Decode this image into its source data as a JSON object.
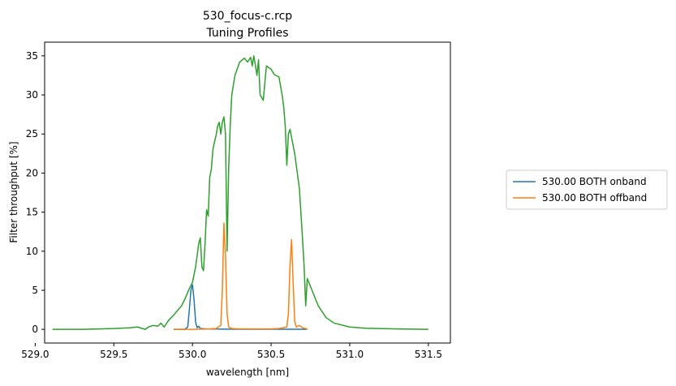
{
  "chart_data": {
    "type": "line",
    "title": "530_focus-c.rcp",
    "subtitle": "Tuning Profiles",
    "xlabel": "wavelength [nm]",
    "ylabel": "Filter throughput [%]",
    "xlim": [
      529.06,
      531.64
    ],
    "ylim": [
      -1.75,
      36.75
    ],
    "xticks": [
      529.0,
      529.5,
      530.0,
      530.5,
      531.0,
      531.5
    ],
    "xtick_labels": [
      "529.0",
      "529.5",
      "530.0",
      "530.5",
      "531.0",
      "531.5"
    ],
    "yticks": [
      0,
      5,
      10,
      15,
      20,
      25,
      30,
      35
    ],
    "ytick_labels": [
      "0",
      "5",
      "10",
      "15",
      "20",
      "25",
      "30",
      "35"
    ],
    "grid": false,
    "legend_position": "right, outside plot",
    "series": [
      {
        "name": "530.00 BOTH onband",
        "color": "#1f77b4",
        "in_legend": true,
        "x": [
          529.88,
          529.95,
          529.97,
          529.98,
          529.99,
          530.0,
          530.01,
          530.02,
          530.03,
          530.04,
          530.05,
          530.1,
          530.2,
          530.3,
          530.4,
          530.5,
          530.6,
          530.7,
          530.73
        ],
        "y": [
          0,
          0,
          0.3,
          2.5,
          5.0,
          5.7,
          3.8,
          0.9,
          0.2,
          0.4,
          0.1,
          0.05,
          0.03,
          0.02,
          0.02,
          0.02,
          0.02,
          0.02,
          0.02
        ]
      },
      {
        "name": "530.00 BOTH offband",
        "color": "#ff7f0e",
        "in_legend": true,
        "x": [
          529.88,
          530.0,
          530.1,
          530.15,
          530.18,
          530.19,
          530.2,
          530.21,
          530.22,
          530.23,
          530.25,
          530.3,
          530.4,
          530.5,
          530.55,
          530.6,
          530.61,
          530.62,
          530.63,
          530.64,
          530.65,
          530.66,
          530.68,
          530.7,
          530.73
        ],
        "y": [
          0,
          0,
          0.05,
          0.1,
          0.5,
          5.0,
          13.6,
          9.5,
          2.0,
          0.3,
          0.1,
          0.05,
          0.05,
          0.05,
          0.1,
          0.3,
          2.0,
          8.0,
          11.5,
          6.0,
          1.0,
          0.3,
          0.5,
          0.2,
          0.05
        ]
      },
      {
        "name": "",
        "color": "#2ca02c",
        "in_legend": false,
        "x": [
          529.11,
          529.3,
          529.5,
          529.6,
          529.65,
          529.7,
          529.72,
          529.75,
          529.78,
          529.8,
          529.82,
          529.85,
          529.88,
          529.9,
          529.93,
          529.95,
          529.98,
          529.99,
          530.0,
          530.02,
          530.04,
          530.05,
          530.06,
          530.07,
          530.08,
          530.09,
          530.1,
          530.11,
          530.12,
          530.13,
          530.14,
          530.15,
          530.16,
          530.17,
          530.18,
          530.19,
          530.2,
          530.21,
          530.22,
          530.23,
          530.24,
          530.25,
          530.27,
          530.3,
          530.33,
          530.35,
          530.37,
          530.38,
          530.39,
          530.4,
          530.41,
          530.42,
          530.43,
          530.45,
          530.47,
          530.5,
          530.52,
          530.55,
          530.57,
          530.58,
          530.59,
          530.6,
          530.61,
          530.62,
          530.65,
          530.68,
          530.7,
          530.71,
          530.72,
          530.73,
          530.75,
          530.8,
          530.85,
          530.9,
          531.0,
          531.1,
          531.3,
          531.5
        ],
        "y": [
          0,
          0,
          0.1,
          0.2,
          0.3,
          0.0,
          0.3,
          0.5,
          0.4,
          0.8,
          0.3,
          1.2,
          1.8,
          2.3,
          3.0,
          3.8,
          5.2,
          5.6,
          6.0,
          8.0,
          11.0,
          11.7,
          8.0,
          7.5,
          11.0,
          15.3,
          14.5,
          19.5,
          20.5,
          23.0,
          24.0,
          24.8,
          26.0,
          26.5,
          25.0,
          26.5,
          27.2,
          25.0,
          10.0,
          20.5,
          26.0,
          30.0,
          32.5,
          34.2,
          34.7,
          34.2,
          34.8,
          33.7,
          35.0,
          33.8,
          32.5,
          34.5,
          30.0,
          29.3,
          33.7,
          33.3,
          32.6,
          32.3,
          30.0,
          28.5,
          26.0,
          21.0,
          25.0,
          25.6,
          22.5,
          18.0,
          11.5,
          8.0,
          3.0,
          6.5,
          5.5,
          3.0,
          1.5,
          0.8,
          0.3,
          0.15,
          0.05,
          0
        ]
      }
    ]
  }
}
